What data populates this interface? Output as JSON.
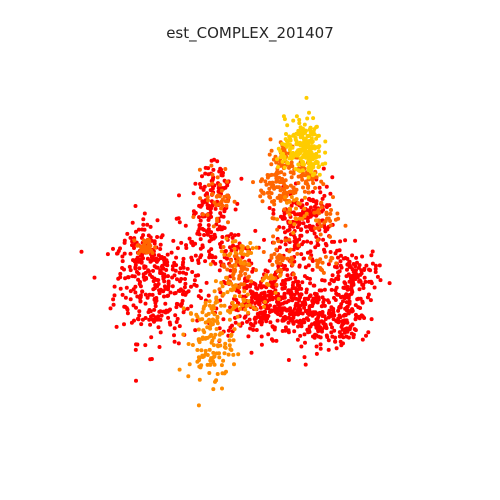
{
  "chart_data": {
    "type": "scatter",
    "title": "est_COMPLEX_201407",
    "xlabel": "",
    "ylabel": "",
    "axes_visible": false,
    "grid": false,
    "legend": "none",
    "xlim": [
      0,
      100
    ],
    "ylim": [
      0,
      100
    ],
    "colors": {
      "red": "#ff0000",
      "orange": "#ff6600",
      "amber": "#ff8c00",
      "yellow": "#ffcc00"
    },
    "series": [
      {
        "color_key": "red",
        "clusters": [
          {
            "cx": 24.0,
            "cy": 41.0,
            "sx": 6.0,
            "sy": 8.0,
            "n": 300
          },
          {
            "cx": 19.0,
            "cy": 50.0,
            "sx": 3.0,
            "sy": 4.0,
            "n": 70
          },
          {
            "cx": 38.0,
            "cy": 59.0,
            "sx": 3.0,
            "sy": 7.0,
            "n": 130
          },
          {
            "cx": 40.0,
            "cy": 68.0,
            "sx": 2.0,
            "sy": 3.5,
            "n": 45
          },
          {
            "cx": 44.0,
            "cy": 50.0,
            "sx": 3.0,
            "sy": 3.0,
            "n": 45
          },
          {
            "cx": 50.0,
            "cy": 36.0,
            "sx": 5.0,
            "sy": 5.0,
            "n": 150
          },
          {
            "cx": 59.0,
            "cy": 34.0,
            "sx": 7.0,
            "sy": 4.0,
            "n": 220
          },
          {
            "cx": 66.0,
            "cy": 31.0,
            "sx": 5.0,
            "sy": 4.0,
            "n": 120
          },
          {
            "cx": 62.0,
            "cy": 55.0,
            "sx": 4.0,
            "sy": 6.0,
            "n": 160
          },
          {
            "cx": 66.0,
            "cy": 62.0,
            "sx": 3.0,
            "sy": 4.0,
            "n": 60
          },
          {
            "cx": 76.0,
            "cy": 43.0,
            "sx": 3.5,
            "sy": 4.0,
            "n": 130
          },
          {
            "cx": 75.0,
            "cy": 33.0,
            "sx": 3.0,
            "sy": 3.0,
            "n": 60
          },
          {
            "cx": 72.0,
            "cy": 26.0,
            "sx": 2.5,
            "sy": 2.0,
            "n": 25
          },
          {
            "cx": 56.0,
            "cy": 40.0,
            "sx": 3.0,
            "sy": 3.0,
            "n": 50
          }
        ]
      },
      {
        "color_key": "orange",
        "clusters": [
          {
            "cx": 20.5,
            "cy": 51.5,
            "sx": 1.2,
            "sy": 1.2,
            "n": 40
          },
          {
            "cx": 40.0,
            "cy": 66.0,
            "sx": 2.0,
            "sy": 4.0,
            "n": 40
          },
          {
            "cx": 56.0,
            "cy": 68.0,
            "sx": 2.5,
            "sy": 3.5,
            "n": 80
          },
          {
            "cx": 58.0,
            "cy": 76.0,
            "sx": 2.0,
            "sy": 3.0,
            "n": 55
          },
          {
            "cx": 64.0,
            "cy": 71.0,
            "sx": 2.5,
            "sy": 2.5,
            "n": 50
          },
          {
            "cx": 69.0,
            "cy": 60.0,
            "sx": 2.0,
            "sy": 3.0,
            "n": 30
          },
          {
            "cx": 57.0,
            "cy": 49.0,
            "sx": 2.0,
            "sy": 3.0,
            "n": 40
          },
          {
            "cx": 45.0,
            "cy": 45.0,
            "sx": 2.5,
            "sy": 3.0,
            "n": 55
          },
          {
            "cx": 68.0,
            "cy": 47.0,
            "sx": 1.5,
            "sy": 2.0,
            "n": 15
          }
        ]
      },
      {
        "color_key": "amber",
        "clusters": [
          {
            "cx": 38.0,
            "cy": 25.0,
            "sx": 3.0,
            "sy": 6.0,
            "n": 130
          },
          {
            "cx": 44.0,
            "cy": 36.0,
            "sx": 3.0,
            "sy": 3.0,
            "n": 50
          },
          {
            "cx": 46.0,
            "cy": 50.0,
            "sx": 2.5,
            "sy": 3.0,
            "n": 30
          },
          {
            "cx": 53.0,
            "cy": 42.0,
            "sx": 1.5,
            "sy": 2.0,
            "n": 15
          },
          {
            "cx": 60.0,
            "cy": 62.0,
            "sx": 2.0,
            "sy": 3.0,
            "n": 25
          }
        ]
      },
      {
        "color_key": "yellow",
        "clusters": [
          {
            "cx": 63.0,
            "cy": 81.0,
            "sx": 2.5,
            "sy": 3.5,
            "n": 140
          },
          {
            "cx": 65.0,
            "cy": 76.0,
            "sx": 1.5,
            "sy": 2.5,
            "n": 60
          },
          {
            "cx": 58.5,
            "cy": 77.0,
            "sx": 1.5,
            "sy": 1.5,
            "n": 25
          }
        ]
      }
    ]
  }
}
